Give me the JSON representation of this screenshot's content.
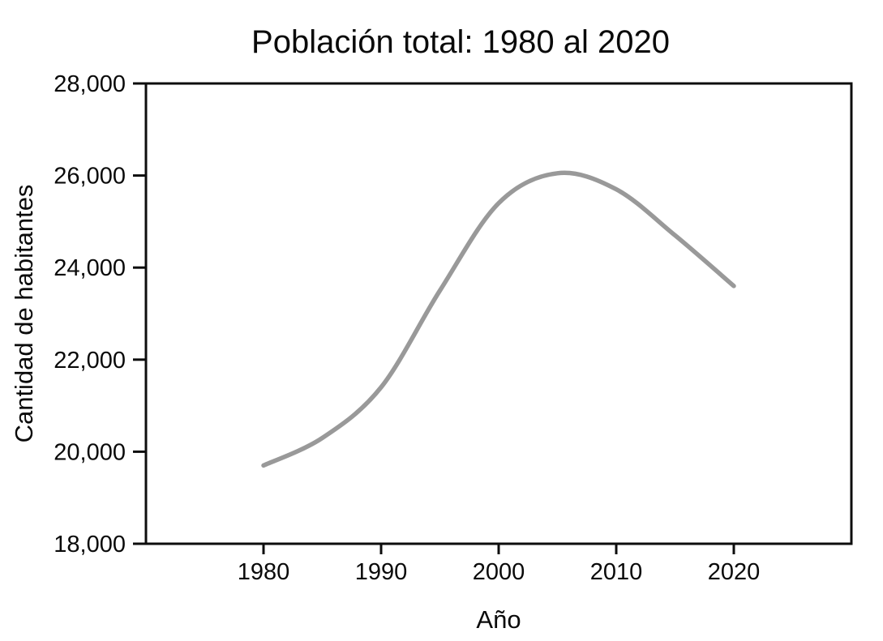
{
  "chart_data": {
    "type": "line",
    "title": "Población total: 1980 al 2020",
    "xlabel": "Año",
    "ylabel": "Cantidad de habitantes",
    "series": [
      {
        "name": "Población total",
        "x": [
          1980,
          1985,
          1990,
          1995,
          2000,
          2005,
          2010,
          2015,
          2020
        ],
        "y": [
          19700,
          20300,
          21400,
          23500,
          25400,
          26050,
          25700,
          24700,
          23600
        ]
      }
    ],
    "xlim": [
      1970,
      2030
    ],
    "ylim": [
      18000,
      28000
    ],
    "xticks": [
      1980,
      1990,
      2000,
      2010,
      2020
    ],
    "xtick_labels": [
      "1980",
      "1990",
      "2000",
      "2010",
      "2020"
    ],
    "yticks": [
      18000,
      20000,
      22000,
      24000,
      26000,
      28000
    ],
    "ytick_labels": [
      "18,000",
      "20,000",
      "22,000",
      "24,000",
      "26,000",
      "28,000"
    ],
    "grid": false,
    "legend": null,
    "smooth": true,
    "line_color": "#999999",
    "line_width": 5.5,
    "axis_color": "#0d0d0d",
    "background": "#ffffff"
  }
}
